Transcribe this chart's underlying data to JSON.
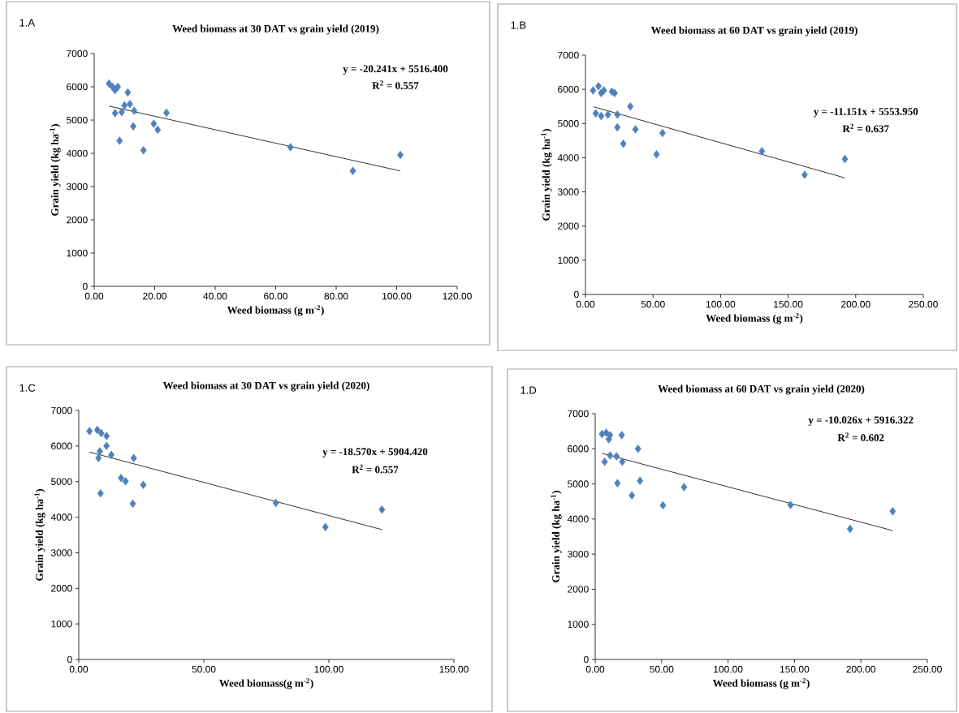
{
  "chart_data": [
    {
      "type": "scatter",
      "title": "Weed biomass at 30 DAT vs grain yield (2019)",
      "xlabel": "Weed biomass (g m$^{-2}$)",
      "ylabel": "Grain yield (kg ha$^{-1}$)",
      "xlim": [
        0,
        120
      ],
      "ylim": [
        0,
        7000
      ],
      "xticks": [
        {
          "value": 0,
          "label": "0.00"
        },
        {
          "value": 20,
          "label": "20.00"
        },
        {
          "value": 40,
          "label": "40.00"
        },
        {
          "value": 60,
          "label": "60.00"
        },
        {
          "value": 80,
          "label": "80.00"
        },
        {
          "value": 100,
          "label": "100.00"
        },
        {
          "value": 120,
          "label": "120.00"
        }
      ],
      "yticks": [
        0,
        1000,
        2000,
        3000,
        4000,
        5000,
        6000,
        7000
      ],
      "annotations": [
        "1.A",
        "y = -20.241x + 5516.400",
        "R$^{2}$ = 0.557"
      ],
      "series": [
        {
          "color": "#4f81bd",
          "marker": "diamond",
          "x": [
            4.9,
            6.0,
            7.8,
            6.9,
            11.1,
            11.8,
            10.0,
            13.2,
            6.9,
            9.1,
            23.9,
            12.9,
            19.7,
            21.0,
            8.4,
            16.3,
            64.9,
            85.5,
            101.2
          ],
          "values": [
            6100,
            6000,
            6000,
            5900,
            5830,
            5480,
            5440,
            5280,
            5210,
            5240,
            5220,
            4810,
            4890,
            4710,
            4380,
            4090,
            4180,
            3470,
            3950
          ]
        },
        {
          "type": "line",
          "color": "#000000",
          "marker": "none",
          "x": [
            4.9,
            101.2
          ],
          "values": [
            5420,
            3470
          ]
        }
      ]
    },
    {
      "type": "scatter",
      "title": "Weed biomass at 60 DAT vs grain yield (2019)",
      "xlabel": "Weed biomass (g m$^{-2}$)",
      "ylabel": "Grain yield (kg ha$^{-1}$)",
      "xlim": [
        0,
        250
      ],
      "ylim": [
        0,
        7000
      ],
      "xticks": [
        {
          "value": 0,
          "label": "0.00"
        },
        {
          "value": 50,
          "label": "50.00"
        },
        {
          "value": 100,
          "label": "100.00"
        },
        {
          "value": 150,
          "label": "150.00"
        },
        {
          "value": 200,
          "label": "200.00"
        },
        {
          "value": 250,
          "label": "250.00"
        }
      ],
      "yticks": [
        0,
        1000,
        2000,
        3000,
        4000,
        5000,
        6000,
        7000
      ],
      "annotations": [
        "1.B",
        "y = -11.151x + 5553.950",
        "R$^{2}$ = 0.637"
      ],
      "series": [
        {
          "color": "#4f81bd",
          "marker": "diamond",
          "x": [
            5.6,
            9.6,
            11.6,
            13.6,
            19.6,
            21.6,
            7.6,
            11.6,
            16.6,
            23.6,
            33.2,
            23.6,
            37,
            28,
            57,
            52.6,
            130.6,
            162.2,
            192
          ],
          "values": [
            5970,
            6090,
            5890,
            5970,
            5930,
            5890,
            5300,
            5220,
            5260,
            5260,
            5500,
            4890,
            4830,
            4410,
            4720,
            4100,
            4190,
            3500,
            3960
          ]
        },
        {
          "type": "line",
          "color": "#000000",
          "marker": "none",
          "x": [
            6,
            192
          ],
          "values": [
            5490,
            3410
          ]
        }
      ]
    },
    {
      "type": "scatter",
      "title": "Weed biomass at 30 DAT vs grain yield (2020)",
      "xlabel": "Weed biomass(g m$^{-2}$)",
      "ylabel": "Grain yield (kg ha$^{-1}$)",
      "xlim": [
        0,
        150
      ],
      "ylim": [
        0,
        7000
      ],
      "xticks": [
        {
          "value": 0,
          "label": "0.00"
        },
        {
          "value": 50,
          "label": "50.00"
        },
        {
          "value": 100,
          "label": "100.00"
        },
        {
          "value": 150,
          "label": "150.00"
        }
      ],
      "yticks": [
        0,
        1000,
        2000,
        3000,
        4000,
        5000,
        6000,
        7000
      ],
      "annotations": [
        "1.C",
        "y = -18.570x + 5904.420",
        "R$^{2}$ = 0.557"
      ],
      "series": [
        {
          "color": "#4f81bd",
          "marker": "diamond",
          "x": [
            4.3,
            7.4,
            9.0,
            11.1,
            11.1,
            8.4,
            7.9,
            13.0,
            22.0,
            16.9,
            18.7,
            25.8,
            8.7,
            21.6,
            78.8,
            98.6,
            121.2
          ],
          "values": [
            6420,
            6450,
            6360,
            6280,
            6000,
            5850,
            5660,
            5750,
            5660,
            5100,
            5010,
            4910,
            4670,
            4380,
            4400,
            3720,
            4210
          ]
        },
        {
          "type": "line",
          "color": "#000000",
          "marker": "none",
          "x": [
            4.3,
            121.2
          ],
          "values": [
            5830,
            3650
          ]
        }
      ]
    },
    {
      "type": "scatter",
      "title": "Weed biomass at 60 DAT vs grain yield (2020)",
      "xlabel": "Weed biomass (g m$^{-2}$)",
      "ylabel": "Grain yield (kg ha$^{-1}$)",
      "xlim": [
        0,
        250
      ],
      "ylim": [
        0,
        7000
      ],
      "xticks": [
        {
          "value": 0,
          "label": "0.00"
        },
        {
          "value": 50,
          "label": "50.00"
        },
        {
          "value": 100,
          "label": "100.00"
        },
        {
          "value": 150,
          "label": "150.00"
        },
        {
          "value": 200,
          "label": "200.00"
        },
        {
          "value": 250,
          "label": "250.00"
        }
      ],
      "yticks": [
        0,
        1000,
        2000,
        3000,
        4000,
        5000,
        6000,
        7000
      ],
      "annotations": [
        "1.D",
        "y = -10.026x + 5916.322",
        "R$^{2}$ = 0.602"
      ],
      "series": [
        {
          "color": "#4f81bd",
          "marker": "diamond",
          "x": [
            5.1,
            8.2,
            11.2,
            10.2,
            20.0,
            32.2,
            7.1,
            11.2,
            16.0,
            20.4,
            16.7,
            33.7,
            27.6,
            66.9,
            51.0,
            147,
            191.8,
            223.9
          ],
          "values": [
            6420,
            6460,
            6390,
            6270,
            6390,
            6000,
            5630,
            5810,
            5790,
            5630,
            5020,
            5090,
            4670,
            4910,
            4390,
            4400,
            3720,
            4220
          ]
        },
        {
          "type": "line",
          "color": "#000000",
          "marker": "none",
          "x": [
            5,
            224
          ],
          "values": [
            5870,
            3670
          ]
        }
      ]
    }
  ]
}
